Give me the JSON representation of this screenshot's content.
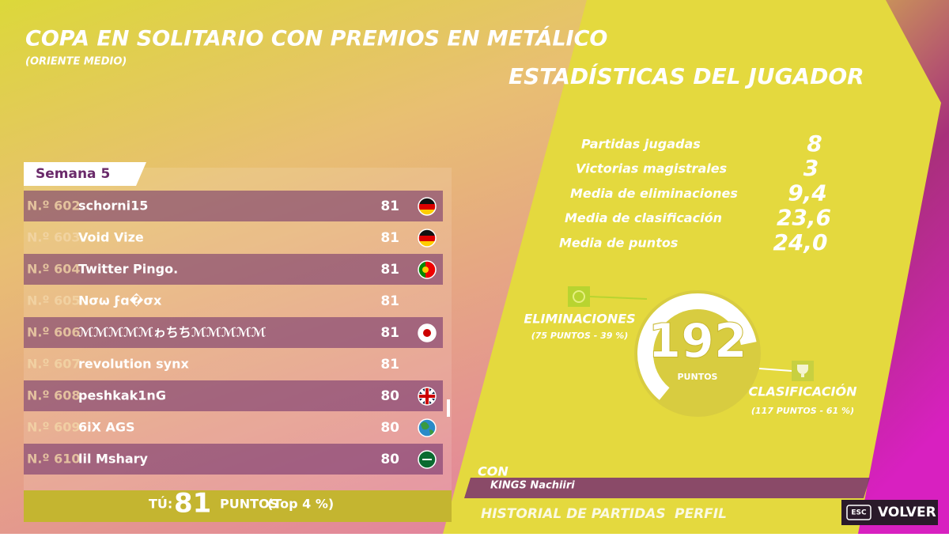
{
  "header": {
    "title": "COPA EN SOLITARIO CON PREMIOS EN METÁLICO",
    "subtitle": "(ORIENTE MEDIO)"
  },
  "leaderboard": {
    "tab": "Semana 5",
    "rows": [
      {
        "rank": "N.º 602",
        "name": "schorni15",
        "points": 81
      },
      {
        "rank": "N.º 603",
        "name": "Void Vize",
        "points": 81
      },
      {
        "rank": "N.º 604",
        "name": "Twitter Pingo.",
        "points": 81
      },
      {
        "rank": "N.º 605",
        "name": "Nσω ϝɑ�σx",
        "points": 81
      },
      {
        "rank": "N.º 606",
        "name": "ℳℳℳℳℳゎちちℳℳℳℳℳ",
        "points": 81
      },
      {
        "rank": "N.º 607",
        "name": "revolution synx",
        "points": 81
      },
      {
        "rank": "N.º 608",
        "name": "peshkak1nG",
        "points": 80
      },
      {
        "rank": "N.º 609",
        "name": "6iX AGS",
        "points": 80
      },
      {
        "rank": "N.º 610",
        "name": "lil Mshary",
        "points": 80
      }
    ],
    "you": {
      "label": "TÚ:",
      "points": 81,
      "unit": "PUNTOS",
      "top": "(Top 4 %)"
    }
  },
  "stats": {
    "title": "ESTADÍSTICAS DEL JUGADOR",
    "items": [
      {
        "label": "Partidas jugadas",
        "value": "8"
      },
      {
        "label": "Victorias magistrales",
        "value": "3"
      },
      {
        "label": "Media de eliminaciones",
        "value": "9,4"
      },
      {
        "label": "Media de clasificación",
        "value": "23,6"
      },
      {
        "label": "Media de puntos",
        "value": "24,0"
      }
    ]
  },
  "donut": {
    "total": 192,
    "unit": "PUNTOS",
    "segments": [
      {
        "label": "ELIMINACIONES",
        "detail": "(75 PUNTOS - 39 %)",
        "value": 75
      },
      {
        "label": "CLASIFICACIÓN",
        "detail": "(117 PUNTOS - 61 %)",
        "value": 117
      }
    ]
  },
  "squad": {
    "with": "CON",
    "name": "KINGS Nachiiri"
  },
  "nav": {
    "history": "HISTORIAL DE PARTIDAS",
    "profile": "PERFIL",
    "key": "ESC",
    "back": "VOLVER"
  }
}
